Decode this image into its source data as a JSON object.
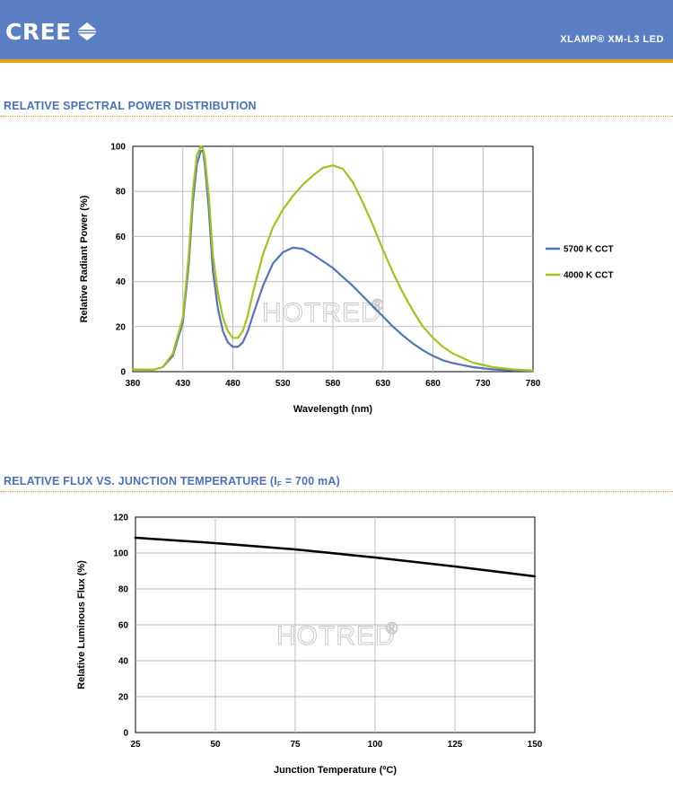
{
  "header": {
    "brand": "CREE",
    "product": "XLAMP® XM-L3 LED"
  },
  "watermark": "HOTRED",
  "watermark_symbol": "®",
  "colors": {
    "header_bg": "#5b7fc4",
    "accent_rule": "#e0a21b",
    "title_text": "#4a71b8",
    "series_5700": "#5374b8",
    "series_4000": "#a3c21d",
    "flux_curve": "#000000"
  },
  "sections": {
    "spectral_title": "RELATIVE SPECTRAL POWER DISTRIBUTION",
    "flux_title_main": "RELATIVE FLUX VS. JUNCTION TEMPERATURE (I",
    "flux_title_sub": "F",
    "flux_title_tail": " = 700 mA)"
  },
  "chart_data": [
    {
      "type": "line",
      "title": "RELATIVE SPECTRAL POWER DISTRIBUTION",
      "xlabel": "Wavelength (nm)",
      "ylabel": "Relative Radiant Power (%)",
      "xlim": [
        380,
        780
      ],
      "ylim": [
        0,
        100
      ],
      "xticks": [
        380,
        430,
        480,
        530,
        580,
        630,
        680,
        730,
        780
      ],
      "yticks": [
        0,
        20,
        40,
        60,
        80,
        100
      ],
      "grid": true,
      "legend_position": "right",
      "series": [
        {
          "name": "5700 K CCT",
          "color": "#5374b8",
          "x": [
            380,
            400,
            410,
            420,
            430,
            436,
            440,
            444,
            448,
            450,
            452,
            456,
            460,
            465,
            470,
            475,
            480,
            485,
            490,
            495,
            500,
            510,
            520,
            530,
            540,
            550,
            560,
            570,
            580,
            590,
            600,
            610,
            620,
            630,
            640,
            650,
            660,
            670,
            680,
            690,
            700,
            720,
            740,
            760,
            780
          ],
          "y": [
            1,
            0.8,
            2,
            7,
            22,
            48,
            75,
            92,
            98,
            98,
            92,
            72,
            45,
            28,
            18,
            13,
            11,
            11,
            13,
            18,
            25,
            38,
            48,
            53,
            55,
            54.5,
            52,
            49,
            46,
            42,
            38,
            33.5,
            29,
            24.5,
            20,
            16,
            12.5,
            9.5,
            7,
            5,
            3.8,
            2,
            1,
            0.5,
            0.3
          ]
        },
        {
          "name": "4000 K CCT",
          "color": "#a3c21d",
          "x": [
            380,
            400,
            410,
            420,
            430,
            436,
            440,
            444,
            448,
            450,
            452,
            456,
            460,
            465,
            470,
            475,
            480,
            485,
            490,
            495,
            500,
            510,
            520,
            530,
            540,
            550,
            560,
            570,
            580,
            590,
            600,
            610,
            620,
            630,
            640,
            650,
            660,
            670,
            680,
            690,
            700,
            720,
            740,
            760,
            780
          ],
          "y": [
            1,
            0.8,
            2,
            8,
            24,
            52,
            80,
            96,
            100,
            99,
            95,
            78,
            52,
            35,
            24,
            18,
            15,
            15,
            18,
            25,
            35,
            52,
            64,
            72,
            78,
            83,
            87,
            90.5,
            91.5,
            90,
            84,
            75,
            65,
            54,
            44,
            35,
            27,
            20,
            15,
            11,
            8,
            4,
            2,
            1,
            0.5
          ]
        }
      ]
    },
    {
      "type": "line",
      "title": "RELATIVE FLUX VS. JUNCTION TEMPERATURE (IF = 700 mA)",
      "xlabel": "Junction Temperature (ºC)",
      "ylabel": "Relative Luminous Flux (%)",
      "xlim": [
        25,
        150
      ],
      "ylim": [
        0,
        120
      ],
      "xticks": [
        25,
        50,
        75,
        100,
        125,
        150
      ],
      "yticks": [
        0,
        20,
        40,
        60,
        80,
        100,
        120
      ],
      "grid": true,
      "series": [
        {
          "color": "#000000",
          "x": [
            25,
            50,
            75,
            100,
            125,
            150
          ],
          "y": [
            108.5,
            105.5,
            102,
            97.5,
            92.5,
            87
          ]
        }
      ]
    }
  ]
}
